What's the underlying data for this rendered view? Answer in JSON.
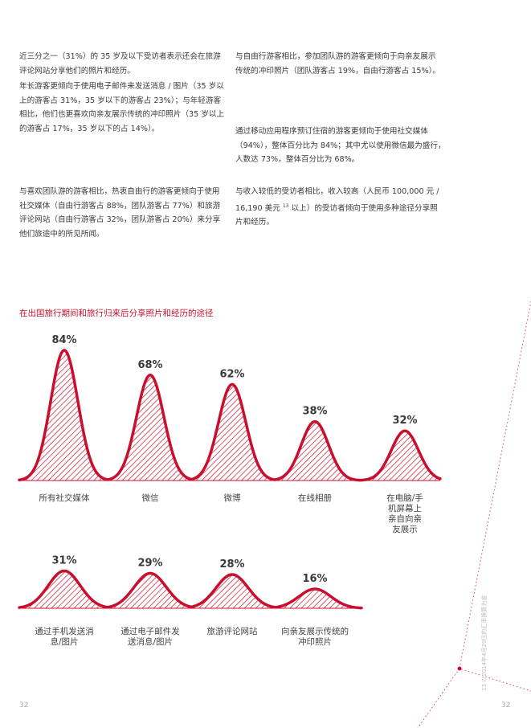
{
  "paragraphs": {
    "p1": "近三分之一（31%）的 35 岁及以下受访者表示还会在旅游评论网站分享他们的照片和经历。",
    "p2": "年长游客更倾向于使用电子邮件来发送消息 / 图片（35 岁以上的游客占 31%，35 岁以下的游客占 23%）；与年轻游客相比，他们也更喜欢向亲友展示传统的冲印照片（35 岁以上的游客占 17%，35 岁以下的占 14%）。",
    "p3": "与喜欢团队游的游客相比，热衷自由行的游客更倾向于使用社交媒体（自由行游客占 88%，团队游客占 77%）和旅游评论网站（自由行游客占 32%，团队游客占 20%）来分享他们旅途中的所见所闻。",
    "p4": "与自由行游客相比，参加团队游的游客更倾向于向亲友展示传统的冲印照片（团队游客占 19%，自由行游客占 15%）。",
    "p5": "通过移动应用程序预订住宿的游客更倾向于使用社交媒体（94%），整体百分比为 84%；其中尤以使用微信最为盛行，人数达 73%，整体百分比为 68%。",
    "p6a": "与收入较低的受访者相比，收入较高（人民币 100,000 元 / 16,190 美元 ",
    "p6sup": "13",
    "p6b": " 以上）的受访者倾向于使用多种途径分享照片和经历。"
  },
  "chart_data": {
    "type": "area",
    "title": "在出国旅行期间和旅行归来后分享照片和经历的途径",
    "unit": "%",
    "series_color": "#c8102e",
    "rows": [
      {
        "categories": [
          "所有社交媒体",
          "微信",
          "微博",
          "在线相册",
          "在电脑/手机屏幕上亲自向亲友展示"
        ],
        "values": [
          84,
          68,
          62,
          38,
          32
        ],
        "value_labels": [
          "84%",
          "68%",
          "62%",
          "38%",
          "32%"
        ],
        "label_lines": [
          [
            "所有社交媒体"
          ],
          [
            "微信"
          ],
          [
            "微博"
          ],
          [
            "在线相册"
          ],
          [
            "在电脑/手",
            "机屏幕上",
            "亲自向亲",
            "友展示"
          ]
        ]
      },
      {
        "categories": [
          "通过手机发送消息/图片",
          "通过电子邮件发送消息/图片",
          "旅游评论网站",
          "向亲友展示传统的冲印照片"
        ],
        "values": [
          31,
          29,
          28,
          16
        ],
        "value_labels": [
          "31%",
          "29%",
          "28%",
          "16%"
        ],
        "label_lines": [
          [
            "通过手机发送消",
            "息/图片"
          ],
          [
            "通过电子邮件发",
            "送消息/图片"
          ],
          [
            "旅游评论网站"
          ],
          [
            "向亲友展示传统的",
            "冲印照片"
          ]
        ]
      }
    ]
  },
  "footer": {
    "page_left": "32",
    "page_right": "32",
    "side_note": "13 以2014年4月29日的汇率换算为准"
  }
}
